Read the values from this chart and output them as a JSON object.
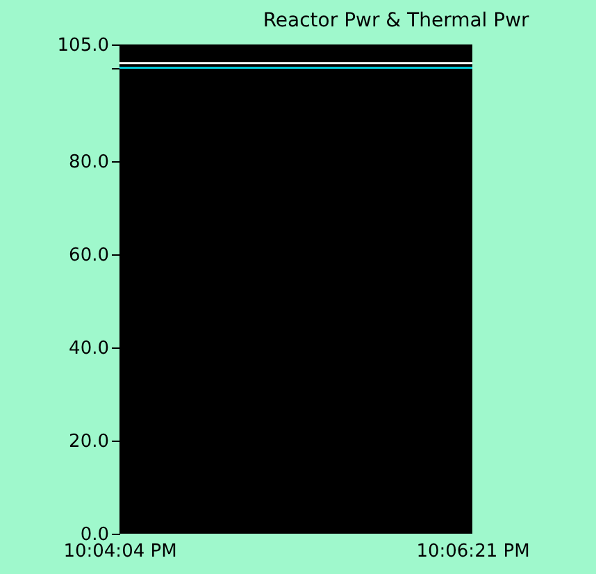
{
  "chart_data": {
    "type": "line",
    "title": "Reactor Pwr & Thermal Pwr",
    "x": [
      22.0678,
      22.1058
    ],
    "xlim": [
      22.0678,
      22.1058
    ],
    "xticks": [
      {
        "value": 22.0678,
        "label": "10:04:04 PM"
      },
      {
        "value": 22.1058,
        "label": "10:06:21 PM"
      }
    ],
    "ylim": [
      0,
      105
    ],
    "yticks": [
      {
        "value": 0,
        "label": "0.0"
      },
      {
        "value": 20,
        "label": "20.0"
      },
      {
        "value": 40,
        "label": "40.0"
      },
      {
        "value": 60,
        "label": "60.0"
      },
      {
        "value": 80,
        "label": "80.0"
      },
      {
        "value": 100,
        "label": null
      },
      {
        "value": 105,
        "label": "105.0"
      }
    ],
    "series": [
      {
        "color": "#ffffff",
        "values": [
          101,
          101
        ]
      },
      {
        "color": "#00c8d8",
        "values": [
          100,
          100
        ]
      }
    ],
    "grid": false,
    "legend": false,
    "marker": "none",
    "line_style": "solid"
  }
}
